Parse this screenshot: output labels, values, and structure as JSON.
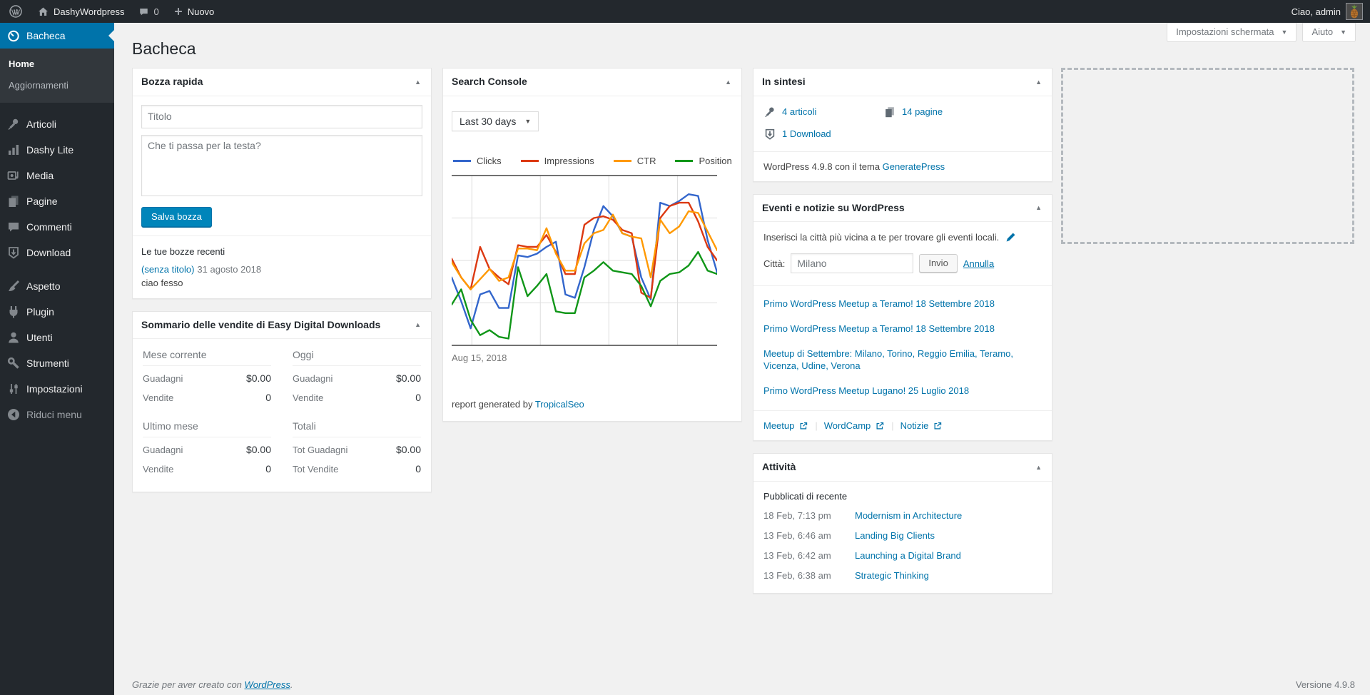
{
  "admin_bar": {
    "site_name": "DashyWordpress",
    "comments_count": "0",
    "new_label": "Nuovo",
    "greeting": "Ciao, admin"
  },
  "screen_meta": {
    "screen_options": "Impostazioni schermata",
    "help": "Aiuto"
  },
  "sidebar": {
    "items": [
      {
        "label": "Bacheca"
      },
      {
        "label": "Articoli"
      },
      {
        "label": "Dashy Lite"
      },
      {
        "label": "Media"
      },
      {
        "label": "Pagine"
      },
      {
        "label": "Commenti"
      },
      {
        "label": "Download"
      },
      {
        "label": "Aspetto"
      },
      {
        "label": "Plugin"
      },
      {
        "label": "Utenti"
      },
      {
        "label": "Strumenti"
      },
      {
        "label": "Impostazioni"
      },
      {
        "label": "Riduci menu"
      }
    ],
    "submenu": [
      {
        "label": "Home"
      },
      {
        "label": "Aggiornamenti"
      }
    ]
  },
  "page": {
    "title": "Bacheca"
  },
  "widgets": {
    "quick_draft": {
      "title": "Bozza rapida",
      "title_placeholder": "Titolo",
      "content_placeholder": "Che ti passa per la testa?",
      "save_button": "Salva bozza",
      "recent_heading": "Le tue bozze recenti",
      "draft_link": "(senza titolo)",
      "draft_date": "31 agosto 2018",
      "draft_excerpt": "ciao fesso"
    },
    "edd": {
      "title": "Sommario delle vendite di Easy Digital Downloads",
      "sections": [
        {
          "heading": "Mese corrente",
          "rows": [
            {
              "label": "Guadagni",
              "value": "$0.00"
            },
            {
              "label": "Vendite",
              "value": "0"
            }
          ]
        },
        {
          "heading": "Oggi",
          "rows": [
            {
              "label": "Guadagni",
              "value": "$0.00"
            },
            {
              "label": "Vendite",
              "value": "0"
            }
          ]
        },
        {
          "heading": "Ultimo mese",
          "rows": [
            {
              "label": "Guadagni",
              "value": "$0.00"
            },
            {
              "label": "Vendite",
              "value": "0"
            }
          ]
        },
        {
          "heading": "Totali",
          "rows": [
            {
              "label": "Tot Guadagni",
              "value": "$0.00"
            },
            {
              "label": "Tot Vendite",
              "value": "0"
            }
          ]
        }
      ]
    },
    "search_console": {
      "title": "Search Console",
      "range": "Last 30 days",
      "axis_start_label": "Aug 15, 2018",
      "credit_prefix": "report generated by ",
      "credit_link": "TropicalSeo"
    },
    "at_a_glance": {
      "title": "In sintesi",
      "items": [
        {
          "label": "4 articoli"
        },
        {
          "label": "14 pagine"
        },
        {
          "label": "1 Download"
        }
      ],
      "version_prefix": "WordPress 4.9.8 con il tema ",
      "theme_link": "GeneratePress"
    },
    "events": {
      "title": "Eventi e notizie su WordPress",
      "prompt": "Inserisci la città più vicina a te per trovare gli eventi locali.",
      "city_label": "Città:",
      "city_placeholder": "Milano",
      "submit_button": "Invio",
      "cancel_link": "Annulla",
      "list": [
        {
          "title": "Primo WordPress Meetup a Teramo! 18 Settembre 2018"
        },
        {
          "title": "Primo WordPress Meetup a Teramo! 18 Settembre 2018"
        },
        {
          "title": "Meetup di Settembre: Milano, Torino, Reggio Emilia, Teramo, Vicenza, Udine, Verona"
        },
        {
          "title": "Primo WordPress Meetup Lugano! 25 Luglio 2018"
        }
      ],
      "footer_links": [
        {
          "label": "Meetup"
        },
        {
          "label": "WordCamp"
        },
        {
          "label": "Notizie"
        }
      ],
      "separator": "|"
    },
    "activity": {
      "title": "Attività",
      "heading": "Pubblicati di recente",
      "posts": [
        {
          "date": "18 Feb, 7:13 pm",
          "title": "Modernism in Architecture"
        },
        {
          "date": "13 Feb, 6:46 am",
          "title": "Landing Big Clients"
        },
        {
          "date": "13 Feb, 6:42 am",
          "title": "Launching a Digital Brand"
        },
        {
          "date": "13 Feb, 6:38 am",
          "title": "Strategic Thinking"
        }
      ]
    }
  },
  "footer": {
    "thanks_prefix": "Grazie per aver creato con ",
    "wp_link": "WordPress",
    "suffix": ".",
    "version": "Versione 4.9.8"
  },
  "colors": {
    "accent": "#0073aa",
    "button_primary": "#0085ba",
    "admin_dark": "#23282d",
    "series_clicks": "#3366cc",
    "series_impressions": "#dc3912",
    "series_ctr": "#ff9900",
    "series_position": "#109618"
  },
  "chart_data": {
    "type": "line",
    "title": "Search Console - Last 30 days",
    "x_start_label": "Aug 15, 2018",
    "x": [
      0,
      1,
      2,
      3,
      4,
      5,
      6,
      7,
      8,
      9,
      10,
      11,
      12,
      13,
      14,
      15,
      16,
      17,
      18,
      19,
      20,
      21,
      22,
      23,
      24,
      25,
      26,
      27,
      28
    ],
    "series": [
      {
        "name": "Clicks",
        "color": "#3366cc",
        "values": [
          40,
          26,
          10,
          30,
          32,
          22,
          22,
          53,
          52,
          54,
          58,
          61,
          30,
          28,
          46,
          68,
          82,
          76,
          66,
          64,
          40,
          27,
          84,
          82,
          85,
          89,
          88,
          62,
          43
        ]
      },
      {
        "name": "Impressions",
        "color": "#dc3912",
        "values": [
          51,
          40,
          33,
          58,
          45,
          40,
          36,
          59,
          58,
          58,
          65,
          55,
          42,
          42,
          71,
          75,
          76,
          74,
          68,
          66,
          31,
          28,
          75,
          82,
          84,
          84,
          73,
          58,
          50
        ]
      },
      {
        "name": "CTR",
        "color": "#ff9900",
        "values": [
          49,
          40,
          33,
          39,
          45,
          38,
          40,
          57,
          57,
          56,
          69,
          54,
          44,
          44,
          60,
          66,
          68,
          77,
          66,
          64,
          63,
          40,
          74,
          66,
          70,
          79,
          78,
          67,
          56
        ]
      },
      {
        "name": "Position",
        "color": "#109618",
        "values": [
          24,
          33,
          15,
          6,
          9,
          5,
          4,
          46,
          29,
          35,
          42,
          20,
          19,
          19,
          40,
          44,
          49,
          44,
          43,
          42,
          35,
          23,
          38,
          42,
          43,
          47,
          55,
          44,
          42
        ]
      }
    ],
    "ylim": [
      0,
      100
    ],
    "grid": {
      "h_fractions": [
        0.25,
        0.5,
        0.75
      ],
      "v_fractions": [
        0.076,
        0.334,
        0.592,
        0.851
      ]
    },
    "legend_position": "top",
    "axes_hidden": true
  }
}
